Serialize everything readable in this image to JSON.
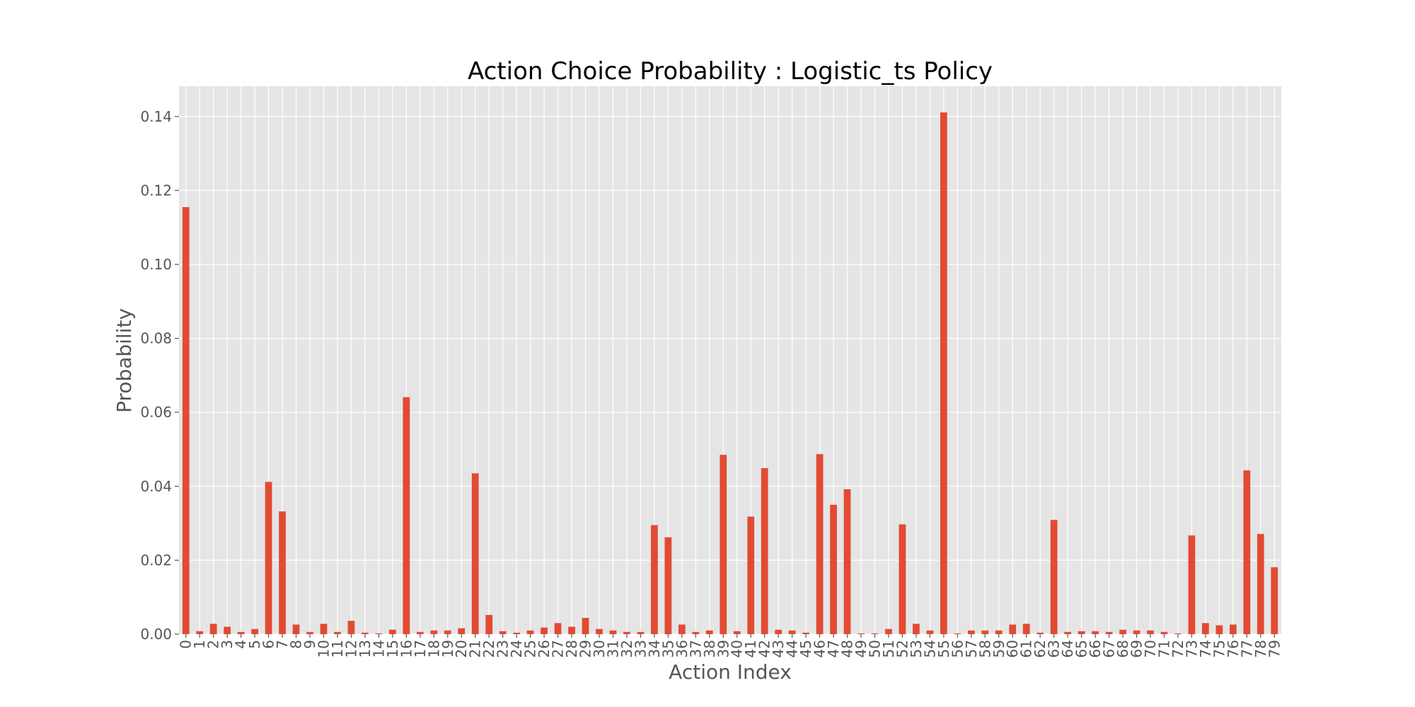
{
  "chart_data": {
    "type": "bar",
    "title": "Action Choice Probability : Logistic_ts Policy",
    "xlabel": "Action Index",
    "ylabel": "Probability",
    "ylim": [
      0,
      0.148
    ],
    "yticks": [
      "0.00",
      "0.02",
      "0.04",
      "0.06",
      "0.08",
      "0.10",
      "0.12",
      "0.14"
    ],
    "ytick_values": [
      0,
      0.02,
      0.04,
      0.06,
      0.08,
      0.1,
      0.12,
      0.14
    ],
    "grid": true,
    "style": "ggplot",
    "bar_color": "#E24A33",
    "background_color": "#E5E5E5",
    "categories": [
      "0",
      "1",
      "2",
      "3",
      "4",
      "5",
      "6",
      "7",
      "8",
      "9",
      "10",
      "11",
      "12",
      "13",
      "14",
      "15",
      "16",
      "17",
      "18",
      "19",
      "20",
      "21",
      "22",
      "23",
      "24",
      "25",
      "26",
      "27",
      "28",
      "29",
      "30",
      "31",
      "32",
      "33",
      "34",
      "35",
      "36",
      "37",
      "38",
      "39",
      "40",
      "41",
      "42",
      "43",
      "44",
      "45",
      "46",
      "47",
      "48",
      "49",
      "50",
      "51",
      "52",
      "53",
      "54",
      "55",
      "56",
      "57",
      "58",
      "59",
      "60",
      "61",
      "62",
      "63",
      "64",
      "65",
      "66",
      "67",
      "68",
      "69",
      "70",
      "71",
      "72",
      "73",
      "74",
      "75",
      "76",
      "77",
      "78",
      "79"
    ],
    "values": [
      0.1155,
      0.0008,
      0.0028,
      0.002,
      0.0006,
      0.0014,
      0.0412,
      0.0332,
      0.0026,
      0.0006,
      0.0028,
      0.0006,
      0.0036,
      0.0004,
      0.0002,
      0.0012,
      0.0641,
      0.0006,
      0.001,
      0.001,
      0.0016,
      0.0435,
      0.0052,
      0.0008,
      0.0004,
      0.001,
      0.0018,
      0.003,
      0.002,
      0.0044,
      0.0014,
      0.001,
      0.0006,
      0.0006,
      0.0295,
      0.0262,
      0.0026,
      0.0006,
      0.001,
      0.0485,
      0.0008,
      0.0318,
      0.0449,
      0.0012,
      0.001,
      0.0004,
      0.0487,
      0.035,
      0.0392,
      0.0002,
      0.0002,
      0.0014,
      0.0297,
      0.0028,
      0.001,
      0.1411,
      0.0002,
      0.001,
      0.001,
      0.001,
      0.0026,
      0.0028,
      0.0004,
      0.0309,
      0.0006,
      0.0008,
      0.0008,
      0.0006,
      0.0012,
      0.001,
      0.001,
      0.0006,
      0.0002,
      0.0267,
      0.003,
      0.0024,
      0.0026,
      0.0443,
      0.0271,
      0.0181
    ]
  }
}
